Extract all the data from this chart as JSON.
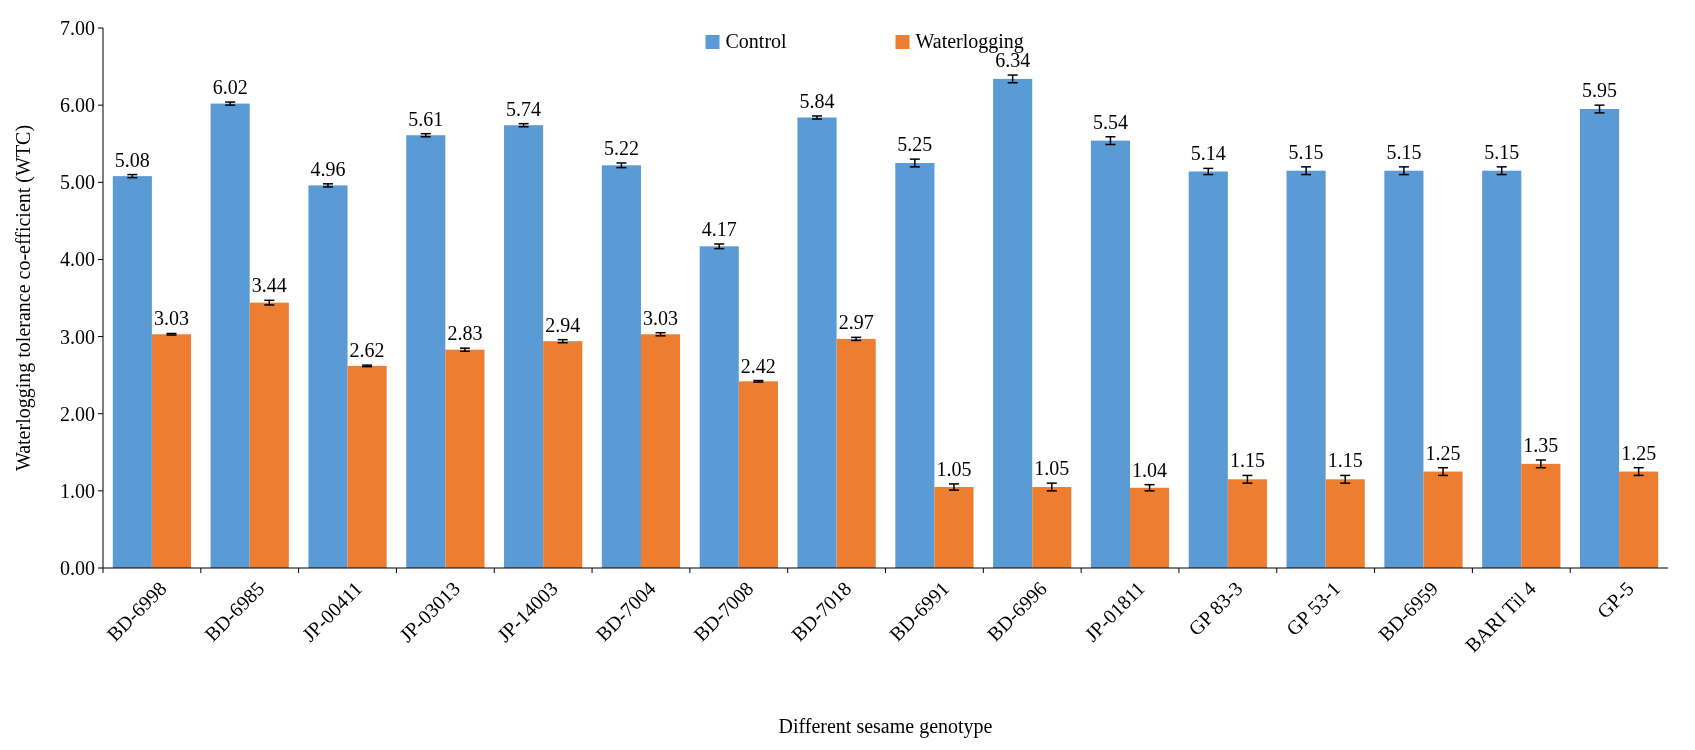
{
  "chart_data": {
    "type": "bar",
    "xlabel": "Different sesame genotype",
    "ylabel": "Waterlogging tolerance co-efficient (WTC)",
    "categories": [
      "BD-6998",
      "BD-6985",
      "JP-00411",
      "JP-03013",
      "JP-14003",
      "BD-7004",
      "BD-7008",
      "BD-7018",
      "BD-6991",
      "BD-6996",
      "JP-01811",
      "GP 83-3",
      "GP 53-1",
      "BD-6959",
      "BARI Til 4",
      "GP-5"
    ],
    "series": [
      {
        "name": "Control",
        "color": "#5b9bd5",
        "values": [
          5.08,
          6.02,
          4.96,
          5.61,
          5.74,
          5.22,
          4.17,
          5.84,
          5.25,
          6.34,
          5.54,
          5.14,
          5.15,
          5.15,
          5.15,
          5.95
        ],
        "errors": [
          0.02,
          0.02,
          0.02,
          0.02,
          0.02,
          0.03,
          0.03,
          0.02,
          0.05,
          0.05,
          0.05,
          0.04,
          0.05,
          0.05,
          0.05,
          0.05
        ],
        "value_labels": [
          "5.08",
          "6.02",
          "4.96",
          "5.61",
          "5.74",
          "5.22",
          "4.17",
          "5.84",
          "5.25",
          "6.34",
          "5.54",
          "5.14",
          "5.15",
          "5.15",
          "5.15",
          "5.95"
        ]
      },
      {
        "name": "Waterlogging",
        "color": "#ed7d31",
        "values": [
          3.03,
          3.44,
          2.62,
          2.83,
          2.94,
          3.03,
          2.42,
          2.97,
          1.05,
          1.05,
          1.04,
          1.15,
          1.15,
          1.25,
          1.35,
          1.25
        ],
        "errors": [
          0.01,
          0.03,
          0.01,
          0.02,
          0.02,
          0.02,
          0.01,
          0.02,
          0.04,
          0.05,
          0.04,
          0.05,
          0.05,
          0.05,
          0.05,
          0.05
        ],
        "value_labels": [
          "3.03",
          "3.44",
          "2.62",
          "2.83",
          "2.94",
          "3.03",
          "2.42",
          "2.97",
          "1.05",
          "1.05",
          "1.04",
          "1.15",
          "1.15",
          "1.25",
          "1.35",
          "1.25"
        ]
      }
    ],
    "ylim": [
      0,
      7
    ],
    "yticks": [
      {
        "value": 0,
        "label": "0.00"
      },
      {
        "value": 1,
        "label": "1.00"
      },
      {
        "value": 2,
        "label": "2.00"
      },
      {
        "value": 3,
        "label": "3.00"
      },
      {
        "value": 4,
        "label": "4.00"
      },
      {
        "value": 5,
        "label": "5.00"
      },
      {
        "value": 6,
        "label": "6.00"
      },
      {
        "value": 7,
        "label": "7.00"
      }
    ],
    "legend": "top",
    "grid": false
  }
}
